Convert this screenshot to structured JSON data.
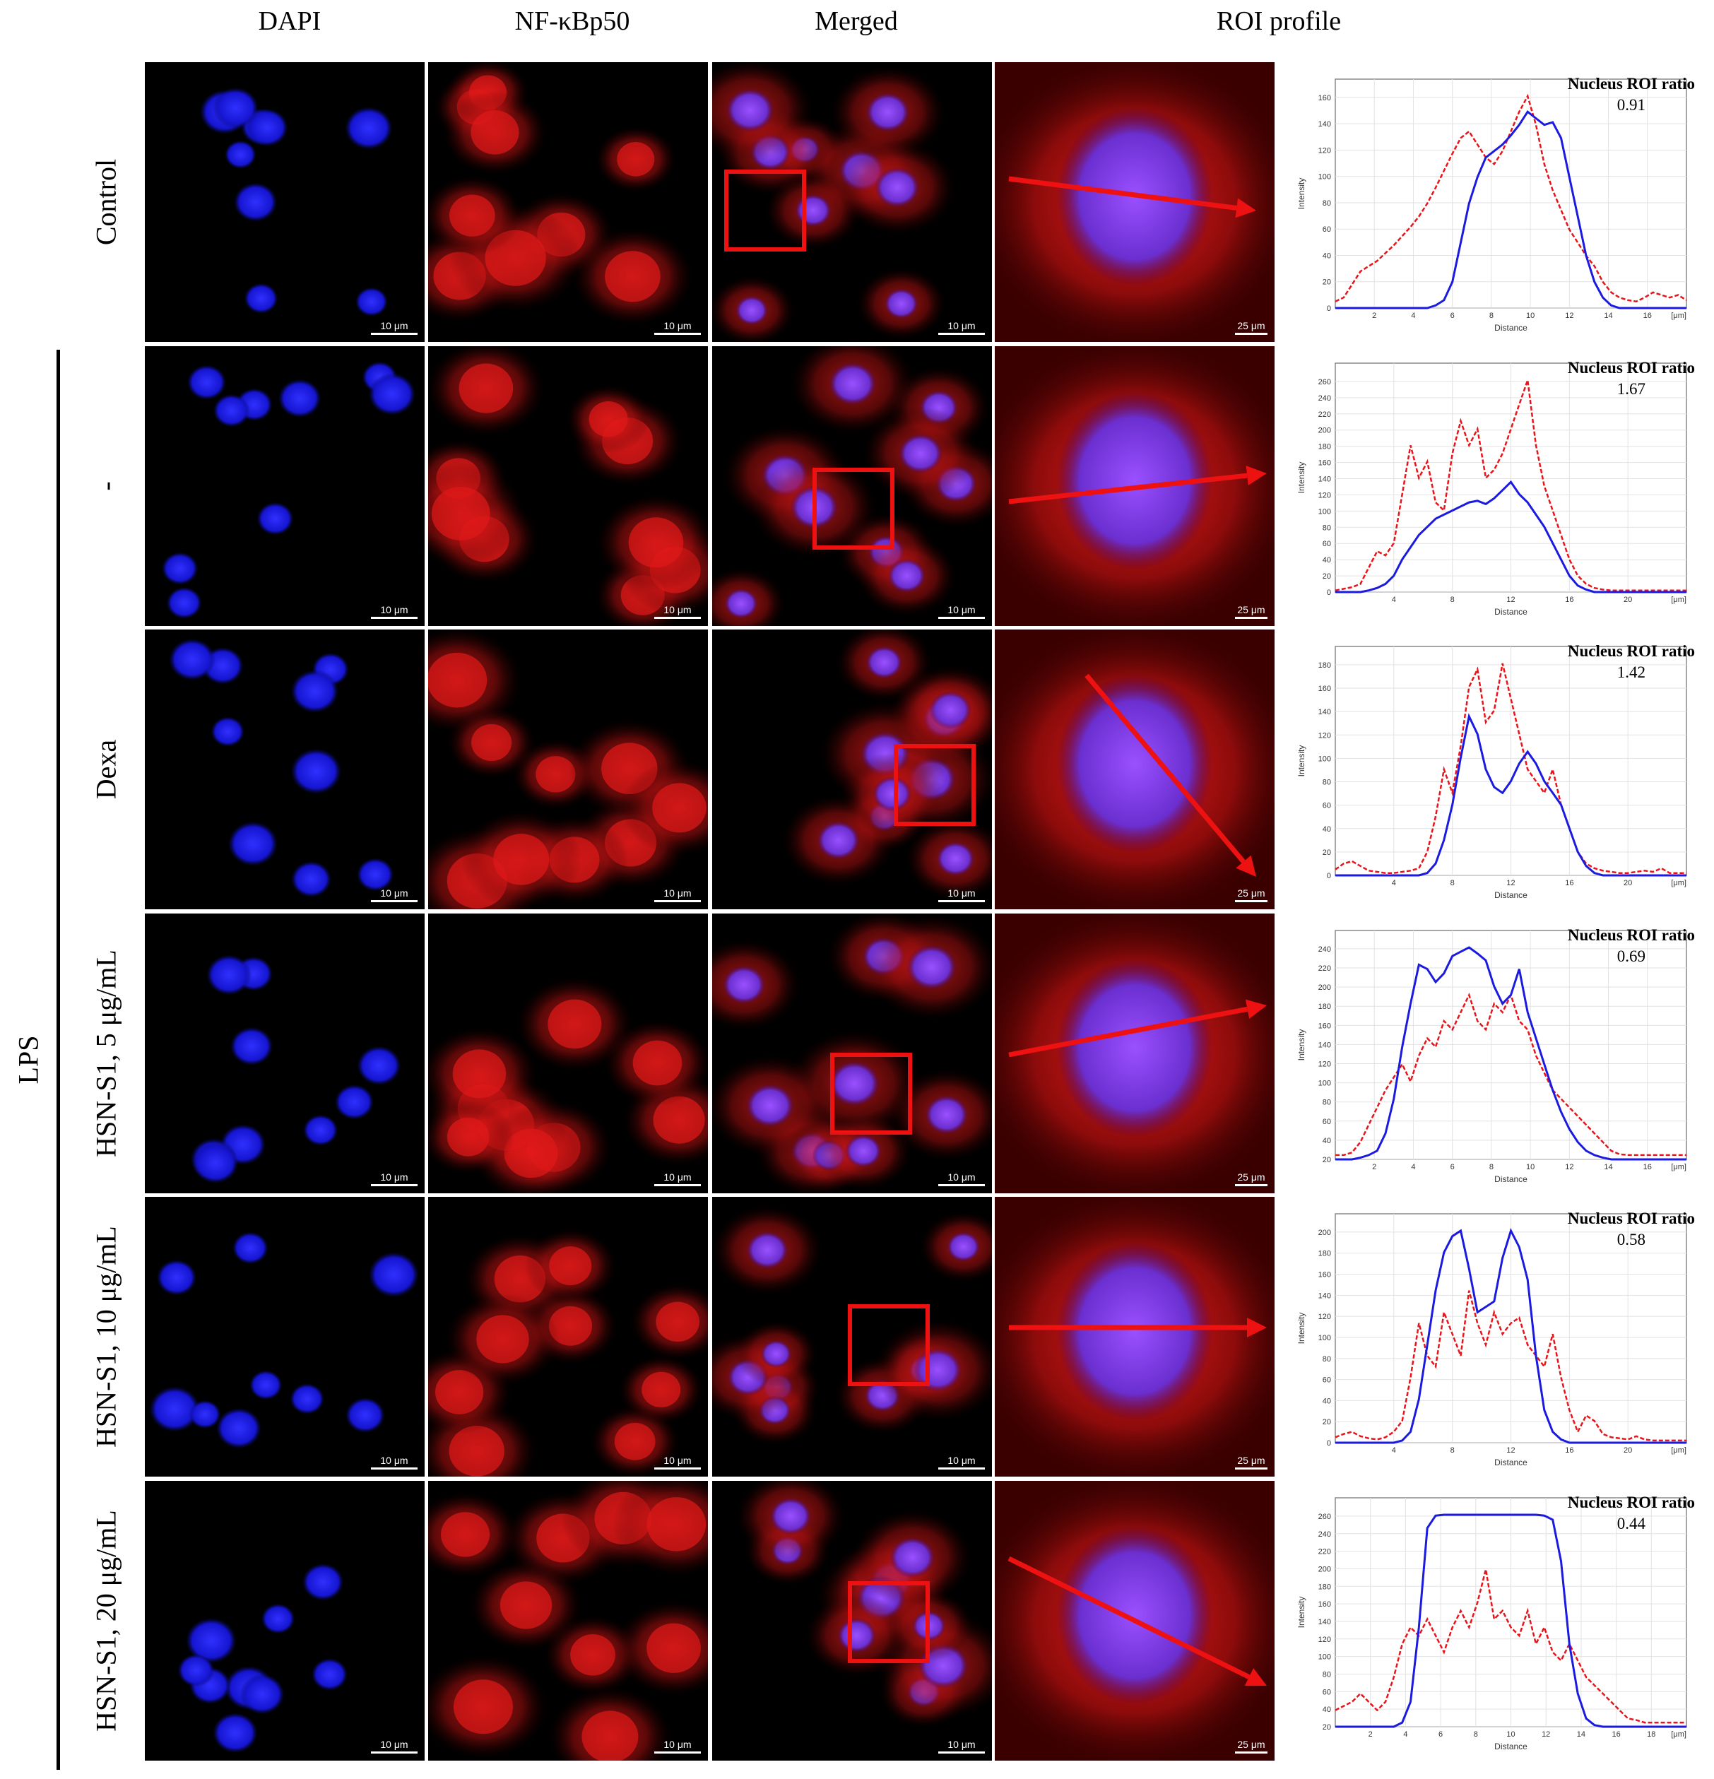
{
  "columns": {
    "dapi": "DAPI",
    "nfkb": "NF-κBp50",
    "merged": "Merged",
    "roi": "ROI profile"
  },
  "group_label": "LPS",
  "rows": [
    {
      "label": "Control",
      "ratio_label": "Nucleus ROI ratio",
      "ratio": "0.91",
      "scale_small": "10 μm",
      "scale_zoom": "25 μm",
      "y_ticks": [
        "0",
        "20",
        "40",
        "60",
        "80",
        "100",
        "120",
        "140",
        "160"
      ],
      "x_ticks": [
        "2",
        "4",
        "6",
        "8",
        "10",
        "12",
        "14",
        "16"
      ],
      "red_profile": [
        5,
        8,
        18,
        28,
        32,
        36,
        42,
        48,
        55,
        62,
        70,
        80,
        92,
        105,
        118,
        130,
        135,
        125,
        115,
        110,
        120,
        135,
        150,
        162,
        140,
        110,
        90,
        75,
        60,
        50,
        40,
        32,
        20,
        12,
        8,
        6,
        5,
        8,
        12,
        10,
        8,
        10,
        6
      ],
      "blue_profile": [
        0,
        0,
        0,
        0,
        0,
        0,
        0,
        0,
        0,
        0,
        0,
        0,
        2,
        6,
        20,
        50,
        80,
        100,
        115,
        120,
        125,
        132,
        140,
        150,
        145,
        140,
        142,
        130,
        100,
        70,
        40,
        20,
        8,
        2,
        0,
        0,
        0,
        0,
        0,
        0,
        0,
        0,
        0
      ]
    },
    {
      "label": "-",
      "ratio_label": "Nucleus ROI ratio",
      "ratio": "1.67",
      "scale_small": "10 μm",
      "scale_zoom": "25 μm",
      "y_ticks": [
        "0",
        "20",
        "40",
        "60",
        "80",
        "100",
        "120",
        "140",
        "160",
        "180",
        "200",
        "220",
        "240",
        "260"
      ],
      "x_ticks": [
        "4",
        "8",
        "12",
        "16",
        "20"
      ],
      "red_profile": [
        2,
        4,
        6,
        10,
        30,
        50,
        45,
        60,
        120,
        180,
        140,
        160,
        110,
        100,
        170,
        210,
        180,
        200,
        140,
        150,
        170,
        200,
        230,
        260,
        180,
        130,
        100,
        70,
        40,
        20,
        10,
        5,
        3,
        2,
        2,
        2,
        2,
        2,
        2,
        2,
        2,
        2,
        2
      ],
      "blue_profile": [
        0,
        0,
        0,
        0,
        2,
        5,
        10,
        20,
        40,
        55,
        70,
        80,
        90,
        95,
        100,
        105,
        110,
        112,
        108,
        115,
        125,
        135,
        120,
        110,
        95,
        80,
        60,
        40,
        20,
        8,
        3,
        0,
        0,
        0,
        0,
        0,
        0,
        0,
        0,
        0,
        0,
        0,
        0
      ]
    },
    {
      "label": "Dexa",
      "ratio_label": "Nucleus ROI ratio",
      "ratio": "1.42",
      "scale_small": "10 μm",
      "scale_zoom": "25 μm",
      "y_ticks": [
        "0",
        "20",
        "40",
        "60",
        "80",
        "100",
        "120",
        "140",
        "160",
        "180"
      ],
      "x_ticks": [
        "4",
        "8",
        "12",
        "16",
        "20"
      ],
      "red_profile": [
        5,
        10,
        12,
        8,
        4,
        3,
        2,
        2,
        3,
        4,
        6,
        20,
        50,
        90,
        70,
        110,
        160,
        175,
        130,
        140,
        180,
        150,
        120,
        90,
        80,
        70,
        90,
        60,
        40,
        20,
        10,
        6,
        4,
        3,
        2,
        2,
        3,
        4,
        3,
        6,
        2,
        2,
        2
      ],
      "blue_profile": [
        0,
        0,
        0,
        0,
        0,
        0,
        0,
        0,
        0,
        0,
        0,
        2,
        10,
        30,
        60,
        100,
        135,
        120,
        90,
        75,
        70,
        80,
        95,
        105,
        95,
        80,
        70,
        60,
        40,
        20,
        8,
        2,
        0,
        0,
        0,
        0,
        0,
        0,
        0,
        0,
        0,
        0,
        0
      ]
    },
    {
      "label": "HSN-S1, 5 μg/mL",
      "ratio_label": "Nucleus ROI ratio",
      "ratio": "0.69",
      "scale_small": "10 μm",
      "scale_zoom": "25 μm",
      "y_ticks": [
        "20",
        "40",
        "60",
        "80",
        "100",
        "120",
        "140",
        "160",
        "180",
        "200",
        "220",
        "240"
      ],
      "x_ticks": [
        "2",
        "4",
        "6",
        "8",
        "10",
        "12",
        "14",
        "16"
      ],
      "red_profile": [
        5,
        5,
        8,
        20,
        40,
        60,
        80,
        95,
        110,
        90,
        120,
        140,
        130,
        160,
        150,
        170,
        190,
        160,
        150,
        180,
        170,
        190,
        160,
        150,
        120,
        100,
        80,
        70,
        60,
        50,
        40,
        30,
        20,
        10,
        6,
        5,
        5,
        5,
        5,
        5,
        5,
        5,
        5
      ],
      "blue_profile": [
        0,
        0,
        0,
        2,
        5,
        10,
        30,
        70,
        130,
        180,
        225,
        220,
        205,
        215,
        235,
        240,
        245,
        238,
        230,
        200,
        180,
        190,
        220,
        170,
        140,
        110,
        80,
        55,
        35,
        20,
        10,
        5,
        2,
        0,
        0,
        0,
        0,
        0,
        0,
        0,
        0,
        0,
        0
      ]
    },
    {
      "label": "HSN-S1, 10 μg/mL",
      "ratio_label": "Nucleus ROI ratio",
      "ratio": "0.58",
      "scale_small": "10 μm",
      "scale_zoom": "25 μm",
      "y_ticks": [
        "0",
        "20",
        "40",
        "60",
        "80",
        "100",
        "120",
        "140",
        "160",
        "180",
        "200"
      ],
      "x_ticks": [
        "4",
        "8",
        "12",
        "16",
        "20"
      ],
      "red_profile": [
        5,
        8,
        10,
        6,
        4,
        3,
        5,
        10,
        20,
        60,
        110,
        80,
        70,
        120,
        100,
        80,
        140,
        110,
        90,
        120,
        100,
        110,
        115,
        90,
        80,
        70,
        100,
        60,
        30,
        10,
        25,
        20,
        8,
        5,
        4,
        3,
        6,
        3,
        2,
        2,
        2,
        2,
        2
      ],
      "blue_profile": [
        0,
        0,
        0,
        0,
        0,
        0,
        0,
        0,
        2,
        10,
        40,
        90,
        140,
        175,
        190,
        195,
        160,
        120,
        125,
        130,
        170,
        195,
        180,
        150,
        80,
        30,
        10,
        3,
        0,
        0,
        0,
        0,
        0,
        0,
        0,
        0,
        0,
        0,
        0,
        0,
        0,
        0,
        0
      ]
    },
    {
      "label": "HSN-S1, 20 μg/mL",
      "ratio_label": "Nucleus ROI ratio",
      "ratio": "0.44",
      "scale_small": "10 μm",
      "scale_zoom": "25 μm",
      "y_ticks": [
        "20",
        "40",
        "60",
        "80",
        "100",
        "120",
        "140",
        "160",
        "180",
        "200",
        "220",
        "240",
        "260"
      ],
      "x_ticks": [
        "2",
        "4",
        "6",
        "8",
        "10",
        "12",
        "14",
        "16",
        "18"
      ],
      "red_profile": [
        20,
        25,
        30,
        40,
        30,
        20,
        30,
        60,
        100,
        120,
        110,
        130,
        110,
        90,
        120,
        140,
        120,
        150,
        190,
        130,
        140,
        120,
        110,
        140,
        100,
        120,
        90,
        80,
        100,
        80,
        60,
        50,
        40,
        30,
        20,
        10,
        8,
        5,
        5,
        5,
        5,
        5,
        5
      ],
      "blue_profile": [
        0,
        0,
        0,
        0,
        0,
        0,
        0,
        0,
        5,
        30,
        120,
        240,
        255,
        256,
        256,
        256,
        256,
        256,
        256,
        256,
        256,
        256,
        256,
        256,
        256,
        255,
        250,
        200,
        100,
        40,
        10,
        2,
        0,
        0,
        0,
        0,
        0,
        0,
        0,
        0,
        0,
        0,
        0
      ]
    }
  ],
  "axis_xlabel": "Distance",
  "axis_ylabel": "Intensity",
  "axis_xunit": "[μm]",
  "colors": {
    "red_channel": "#e8141a",
    "blue_channel": "#1a1ae0",
    "arrow": "#ee1111",
    "box": "#ee1111"
  }
}
